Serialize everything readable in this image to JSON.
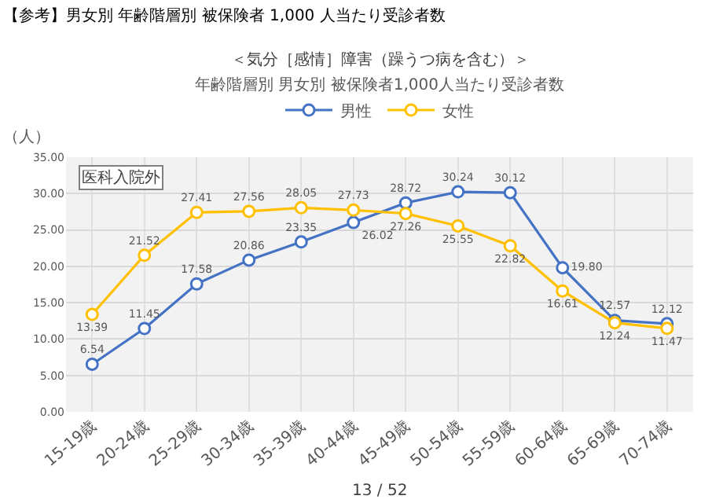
{
  "chart_data": {
    "type": "line",
    "title": "＜気分［感情］障害（躁うつ病を含む）＞",
    "subtitle": "年齢階層別 男女別 被保険者1,000人当たり受診者数",
    "ylabel": "（人）",
    "annotations": [
      "【参考】男女別 年齢階層別 被保険者 1,000 人当たり受診者数",
      "医科入院外",
      "13 / 52"
    ],
    "categories": [
      "15-19歳",
      "20-24歳",
      "25-29歳",
      "30-34歳",
      "35-39歳",
      "40-44歳",
      "45-49歳",
      "50-54歳",
      "55-59歳",
      "60-64歳",
      "65-69歳",
      "70-74歳"
    ],
    "series": [
      {
        "name": "男性",
        "color": "#4472c4",
        "values": [
          6.54,
          11.45,
          17.58,
          20.86,
          23.35,
          26.02,
          28.72,
          30.24,
          30.12,
          19.8,
          12.57,
          12.12
        ],
        "value_labels": [
          "6.54",
          "11.45",
          "17.58",
          "20.86",
          "23.35",
          "26.02",
          "28.72",
          "30.24",
          "30.12",
          "19.80",
          "12.57",
          "12.12"
        ]
      },
      {
        "name": "女性",
        "color": "#ffc000",
        "values": [
          13.39,
          21.52,
          27.41,
          27.56,
          28.05,
          27.73,
          27.26,
          25.55,
          22.82,
          16.61,
          12.24,
          11.47
        ],
        "value_labels": [
          "13.39",
          "21.52",
          "27.41",
          "27.56",
          "28.05",
          "27.73",
          "27.26",
          "25.55",
          "22.82",
          "16.61",
          "12.24",
          "11.47"
        ]
      }
    ],
    "ylim": [
      0,
      35
    ],
    "yticks": [
      {
        "value": 0,
        "label": "0.00"
      },
      {
        "value": 5,
        "label": "5.00"
      },
      {
        "value": 10,
        "label": "10.00"
      },
      {
        "value": 15,
        "label": "15.00"
      },
      {
        "value": 20,
        "label": "20.00"
      },
      {
        "value": 25,
        "label": "25.00"
      },
      {
        "value": 30,
        "label": "30.00"
      },
      {
        "value": 35,
        "label": "35.00"
      }
    ],
    "grid": true,
    "legend": "top",
    "marker": "circle",
    "line_style": "solid"
  }
}
